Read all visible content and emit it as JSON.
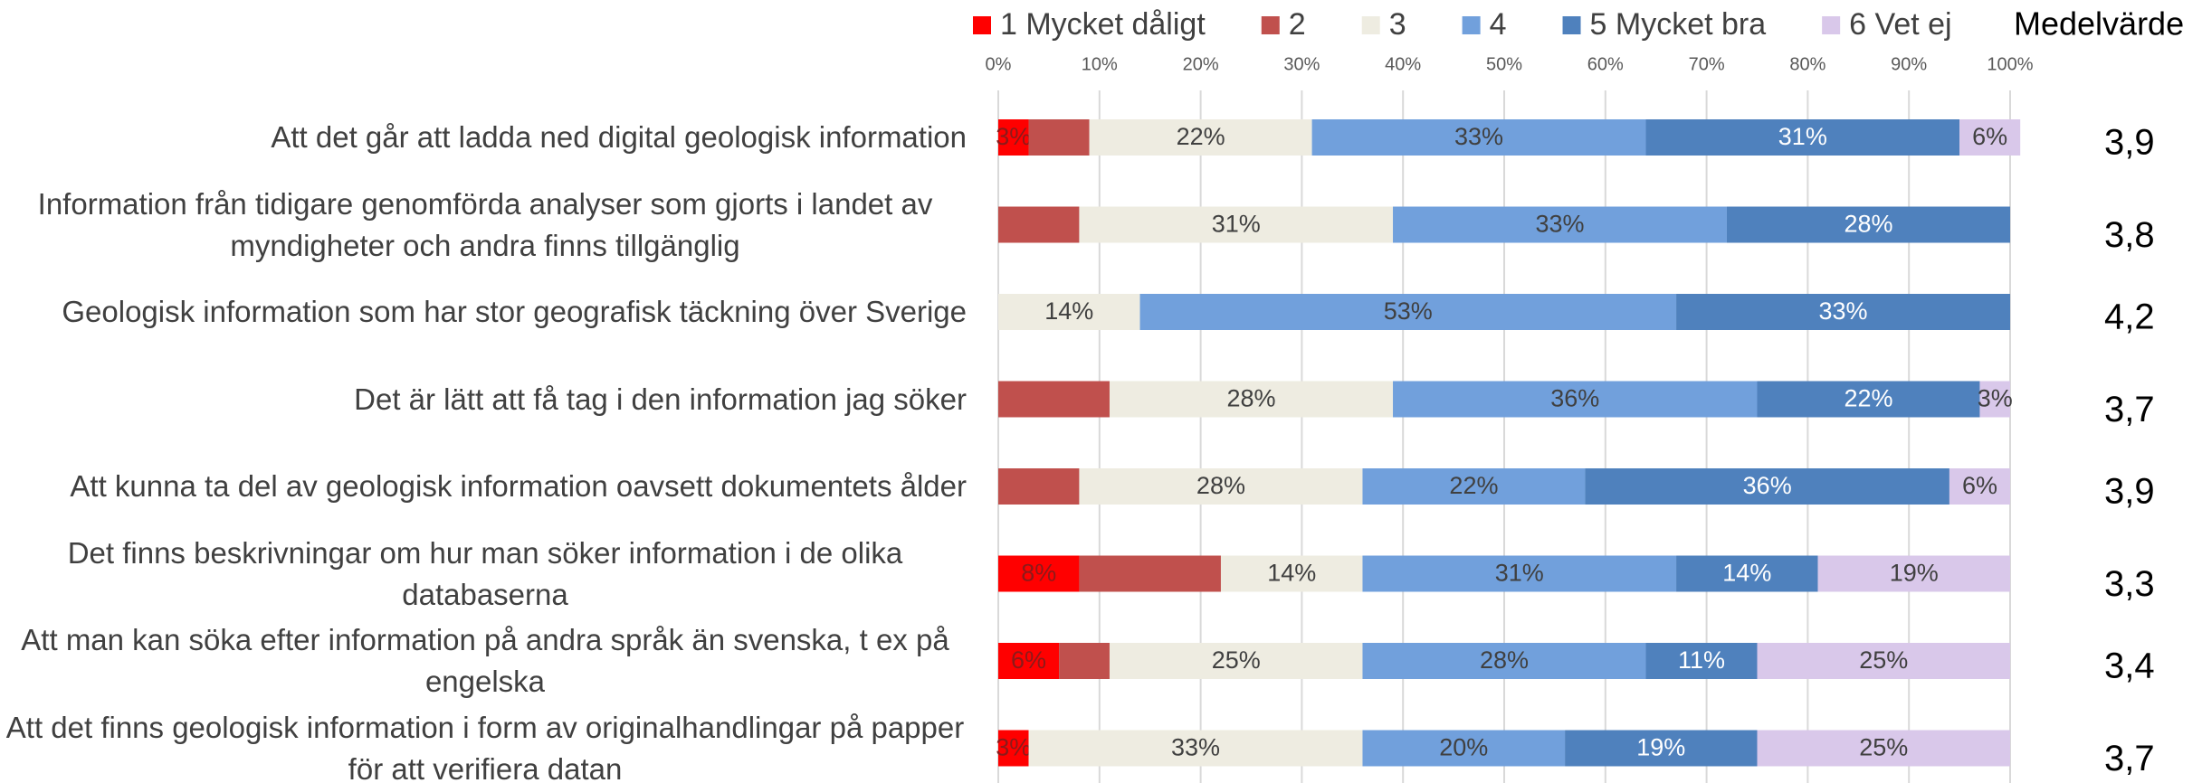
{
  "chart_data": {
    "type": "stacked-bar-horizontal",
    "categories": [
      "Att det går att ladda ned digital geologisk information",
      "Information från tidigare genomförda analyser som gjorts i landet av myndigheter och andra  finns tillgänglig",
      "Geologisk information som har stor geografisk täckning över Sverige",
      "Det är lätt att få tag i den information jag söker",
      "Att kunna ta del av geologisk information oavsett dokumentets ålder",
      "Det finns beskrivningar om hur man söker information i de olika databaserna",
      "Att man kan söka efter information på andra språk än svenska, t ex på engelska",
      "Att det finns geologisk information i form av originalhandlingar på papper för att verifiera datan"
    ],
    "series": [
      {
        "name": "1 Mycket dåligt",
        "color": "#ff0000",
        "label_color": "#8b1a1a",
        "values": [
          3,
          0,
          0,
          0,
          0,
          8,
          6,
          3
        ],
        "value_labels": [
          "3%",
          null,
          null,
          null,
          null,
          "8%",
          "6%",
          "3%"
        ]
      },
      {
        "name": "2",
        "color": "#c0504d",
        "label_color": "#404040",
        "values": [
          6,
          8,
          0,
          11,
          8,
          14,
          5,
          0
        ],
        "value_labels": [
          null,
          null,
          null,
          null,
          null,
          null,
          null,
          null
        ]
      },
      {
        "name": "3",
        "color": "#eeece1",
        "label_color": "#404040",
        "values": [
          22,
          31,
          14,
          28,
          28,
          14,
          25,
          33
        ],
        "value_labels": [
          "22%",
          "31%",
          "14%",
          "28%",
          "28%",
          "14%",
          "25%",
          "33%"
        ]
      },
      {
        "name": "4",
        "color": "#71a0dc",
        "label_color": "#404040",
        "values": [
          33,
          33,
          53,
          36,
          22,
          31,
          28,
          20
        ],
        "value_labels": [
          "33%",
          "33%",
          "53%",
          "36%",
          "22%",
          "31%",
          "28%",
          "20%"
        ]
      },
      {
        "name": "5 Mycket bra",
        "color": "#4f81bd",
        "label_color": "#ffffff",
        "values": [
          31,
          28,
          33,
          22,
          36,
          14,
          11,
          19
        ],
        "value_labels": [
          "31%",
          "28%",
          "33%",
          "22%",
          "36%",
          "14%",
          "11%",
          "19%"
        ]
      },
      {
        "name": "6 Vet ej",
        "color": "#d9c8ea",
        "label_color": "#404040",
        "values": [
          6,
          0,
          0,
          3,
          6,
          19,
          25,
          25
        ],
        "value_labels": [
          "6%",
          null,
          null,
          "3%",
          "6%",
          "19%",
          "25%",
          "25%"
        ]
      }
    ],
    "xlim": [
      0,
      100
    ],
    "xticks": [
      {
        "value": 0,
        "label": "0%"
      },
      {
        "value": 10,
        "label": "10%"
      },
      {
        "value": 20,
        "label": "20%"
      },
      {
        "value": 30,
        "label": "30%"
      },
      {
        "value": 40,
        "label": "40%"
      },
      {
        "value": 50,
        "label": "50%"
      },
      {
        "value": 60,
        "label": "60%"
      },
      {
        "value": 70,
        "label": "70%"
      },
      {
        "value": 80,
        "label": "80%"
      },
      {
        "value": 90,
        "label": "90%"
      },
      {
        "value": 100,
        "label": "100%"
      }
    ],
    "grid": true,
    "mean_title": "Medelvärde",
    "means": [
      {
        "value": 3.9,
        "label": "3,9"
      },
      {
        "value": 3.8,
        "label": "3,8"
      },
      {
        "value": 4.2,
        "label": "4,2"
      },
      {
        "value": 3.7,
        "label": "3,7"
      },
      {
        "value": 3.9,
        "label": "3,9"
      },
      {
        "value": 3.3,
        "label": "3,3"
      },
      {
        "value": 3.4,
        "label": "3,4"
      },
      {
        "value": 3.7,
        "label": "3,7"
      }
    ]
  }
}
